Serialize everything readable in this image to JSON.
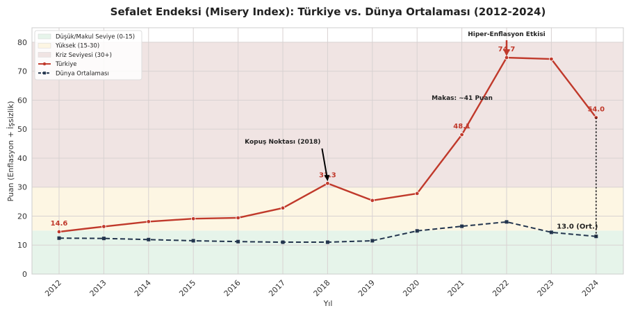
{
  "chart_data": {
    "type": "line",
    "title": "Sefalet Endeksi (Misery Index): Türkiye vs. Dünya Ortalaması (2012-2024)",
    "xlabel": "Yıl",
    "ylabel": "Puan (Enflasyon + İşsizlik)",
    "ylim": [
      0,
      85
    ],
    "yticks": [
      0,
      10,
      20,
      30,
      40,
      50,
      60,
      70,
      80
    ],
    "grid": true,
    "legend_position": "top-left",
    "categories": [
      "2012",
      "2013",
      "2014",
      "2015",
      "2016",
      "2017",
      "2018",
      "2019",
      "2020",
      "2021",
      "2022",
      "2023",
      "2024"
    ],
    "bands": [
      {
        "name": "Düşük/Makul Seviye (0-15)",
        "from": 0,
        "to": 15,
        "color": "#e6f4ea"
      },
      {
        "name": "Yüksek (15-30)",
        "from": 15,
        "to": 30,
        "color": "#fdf6e3"
      },
      {
        "name": "Kriz Seviyesi (30+)",
        "from": 30,
        "to": 80,
        "color": "#f0e4e3"
      }
    ],
    "series": [
      {
        "name": "Türkiye",
        "color": "#c0392b",
        "dash": false,
        "values": [
          14.6,
          16.4,
          18.1,
          19.1,
          19.4,
          22.8,
          31.3,
          25.4,
          27.8,
          48.1,
          74.7,
          74.2,
          54.0
        ]
      },
      {
        "name": "Dünya Ortalaması",
        "color": "#22344d",
        "dash": true,
        "values": [
          12.4,
          12.3,
          11.9,
          11.5,
          11.2,
          11.0,
          11.0,
          11.5,
          14.9,
          16.5,
          18.0,
          14.4,
          13.0
        ]
      }
    ],
    "data_labels": [
      {
        "series": "Türkiye",
        "x": "2012",
        "text": "14.6"
      },
      {
        "series": "Türkiye",
        "x": "2018",
        "text": "31.3"
      },
      {
        "series": "Türkiye",
        "x": "2021",
        "text": "48.1"
      },
      {
        "series": "Türkiye",
        "x": "2022",
        "text": "74.7"
      },
      {
        "series": "Türkiye",
        "x": "2024",
        "text": "54.0"
      },
      {
        "series": "Dünya Ortalaması",
        "x": "2024",
        "text": "13.0 (Ort.)"
      }
    ],
    "annotations": [
      {
        "text": "Kopuş Noktası (2018)",
        "x": "2018",
        "y": 31.3
      },
      {
        "text": "Hiper-Enflasyon Etkisi",
        "x": "2022",
        "y": 74.7
      },
      {
        "text": "Makas: ~41 Puan",
        "x": "2024",
        "y": 54.0
      }
    ]
  }
}
